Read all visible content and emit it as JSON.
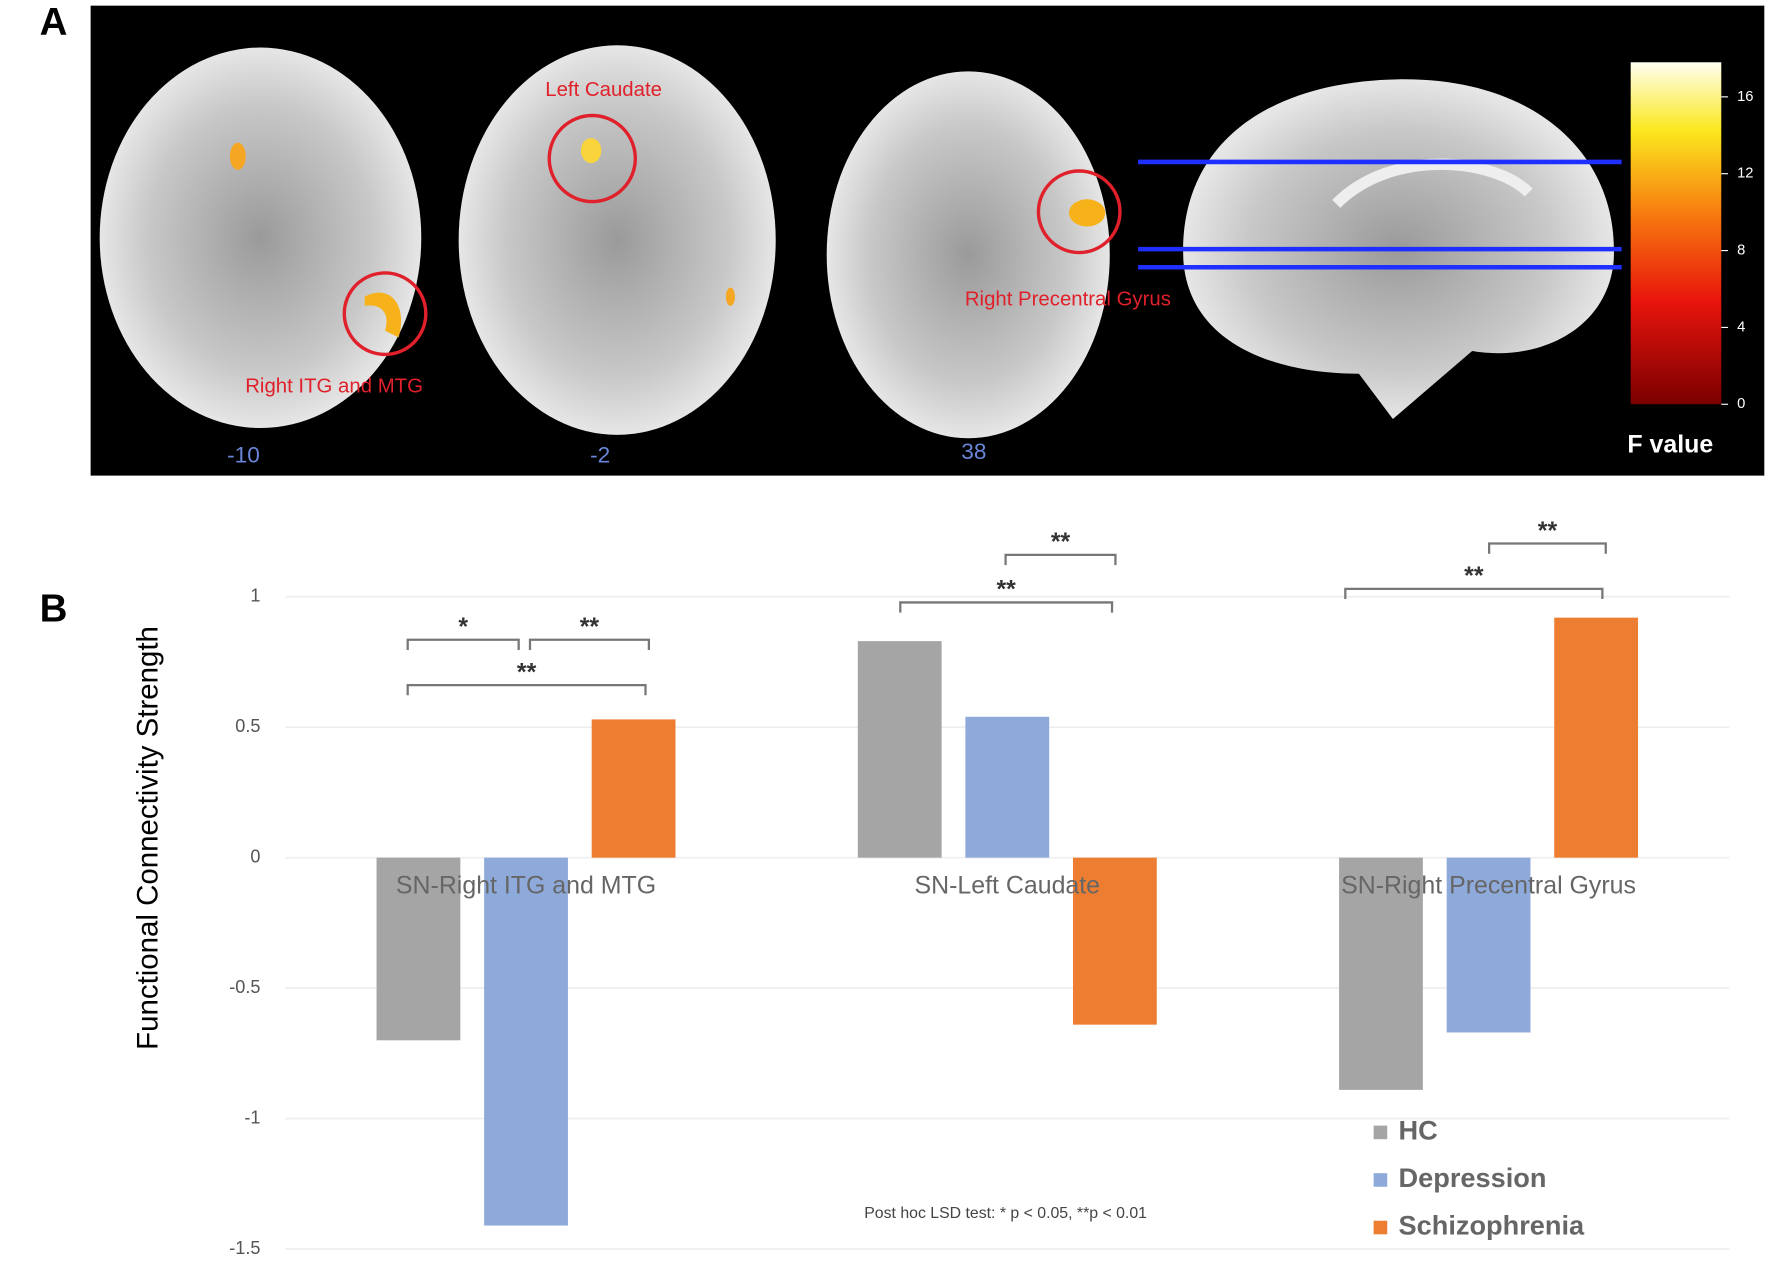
{
  "panel_a": {
    "label": "A",
    "slices": [
      "-10",
      "-2",
      "38"
    ],
    "regions": [
      "Right ITG and MTG",
      "Left Caudate",
      "Right Precentral Gyrus"
    ],
    "colorbar": {
      "title": "F value",
      "lim": [
        0,
        17.8
      ],
      "ticks": [
        0,
        4,
        8,
        12,
        16
      ]
    }
  },
  "chart_data": {
    "type": "bar",
    "panel_label": "B",
    "y_label": "Functional Connectivity Strength",
    "categories": [
      "SN-Right ITG and MTG",
      "SN-Left Caudate",
      "SN-Right Precentral Gyrus"
    ],
    "series": [
      {
        "name": "HC",
        "color": "#a5a5a5",
        "values": [
          -0.7,
          0.83,
          -0.89
        ]
      },
      {
        "name": "Depression",
        "color": "#8eaadb",
        "values": [
          -1.41,
          0.54,
          -0.67
        ]
      },
      {
        "name": "Schizophrenia",
        "color": "#ed7d31",
        "values": [
          0.53,
          -0.64,
          0.92
        ]
      }
    ],
    "ylim": [
      -1.5,
      1
    ],
    "yticks": [
      -1.5,
      -1,
      -0.5,
      0,
      0.5,
      1
    ],
    "grid": true,
    "legend": "bottom-right",
    "annotations": [
      {
        "text": "*"
      },
      {
        "text": "**"
      },
      {
        "text": "**"
      },
      {
        "text": "**"
      },
      {
        "text": "**"
      },
      {
        "text": "**"
      },
      {
        "text": "**"
      }
    ],
    "note": "Post hoc LSD test: * p < 0.05, **p < 0.01"
  }
}
